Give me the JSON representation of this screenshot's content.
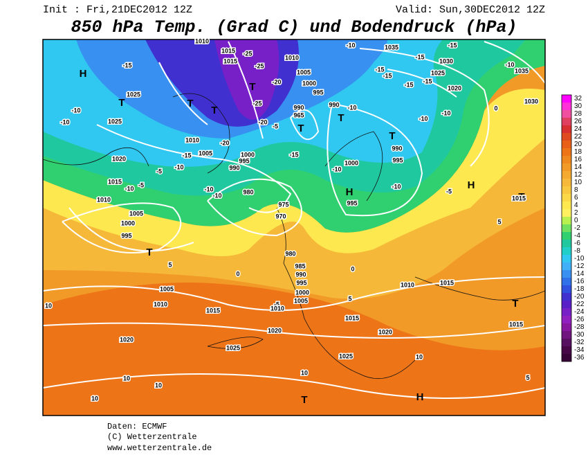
{
  "header": {
    "init": "Init : Fri,21DEC2012 12Z",
    "valid": "Valid: Sun,30DEC2012 12Z",
    "title": "850 hPa Temp. (Grad C) und Bodendruck (hPa)"
  },
  "legend": {
    "values": [
      32,
      30,
      28,
      26,
      24,
      22,
      20,
      18,
      16,
      14,
      12,
      10,
      8,
      6,
      4,
      2,
      0,
      -2,
      -4,
      -6,
      -8,
      -10,
      -12,
      -14,
      -16,
      -18,
      -20,
      -22,
      -24,
      -26,
      -28,
      -30,
      -32,
      -34,
      -36
    ],
    "colors": [
      "#ff00ff",
      "#ff30d8",
      "#f04fa0",
      "#e04060",
      "#d83030",
      "#e04a20",
      "#e86018",
      "#ee7418",
      "#f08820",
      "#f29a28",
      "#f4aa30",
      "#f6b838",
      "#f8c840",
      "#fad848",
      "#fde850",
      "#fff060",
      "#b8f050",
      "#70e060",
      "#30d070",
      "#20c8a0",
      "#20d0c8",
      "#30c8f0",
      "#40b0f8",
      "#3890f0",
      "#3070e8",
      "#3050e0",
      "#4030d0",
      "#5a20c8",
      "#7820c8",
      "#9020c0",
      "#8818a0",
      "#701480",
      "#581060",
      "#480848",
      "#380438"
    ]
  },
  "map_labels": [
    "1010",
    "1015",
    "-25",
    "1015",
    "-25",
    "1010",
    "-10",
    "1035",
    "-15",
    "-15",
    "1030",
    "-10",
    "1035",
    "H",
    "-15",
    "1005",
    "-15",
    "-15",
    "1025",
    "-15",
    "-15",
    "1000",
    "-20",
    "T",
    "1020",
    "995",
    "1025",
    "T",
    "T",
    "-25",
    "990",
    "990",
    "-10",
    "1030",
    "0",
    "-10",
    "T",
    "965",
    "-10",
    "-10",
    "1025",
    "-20",
    "-5",
    "T",
    "T",
    "-10",
    "T",
    "1010",
    "-20",
    "990",
    "1005",
    "-15",
    "1000",
    "-15",
    "995",
    "995",
    "1020",
    "-10",
    "990",
    "-10",
    "1000",
    "-5",
    "-5",
    "1015",
    "-10",
    "-10",
    "-10",
    "980",
    "H",
    "-10",
    "-5",
    "H",
    "T",
    "1015",
    "1010",
    "995",
    "975",
    "970",
    "1005",
    "1000",
    "5",
    "995",
    "T",
    "980",
    "5",
    "985",
    "990",
    "995",
    "0",
    "0",
    "1010",
    "1015",
    "T",
    "1005",
    "1000",
    "1005",
    "-5",
    "10",
    "1010",
    "1010",
    "1015",
    "5",
    "1015",
    "1015",
    "1020",
    "1020",
    "1020",
    "1025",
    "1025",
    "10",
    "10",
    "10",
    "10",
    "5",
    "10",
    "T",
    "H"
  ],
  "footer": [
    "Daten: ECMWF",
    "(C) Wetterzentrale",
    "www.wetterzentrale.de"
  ]
}
